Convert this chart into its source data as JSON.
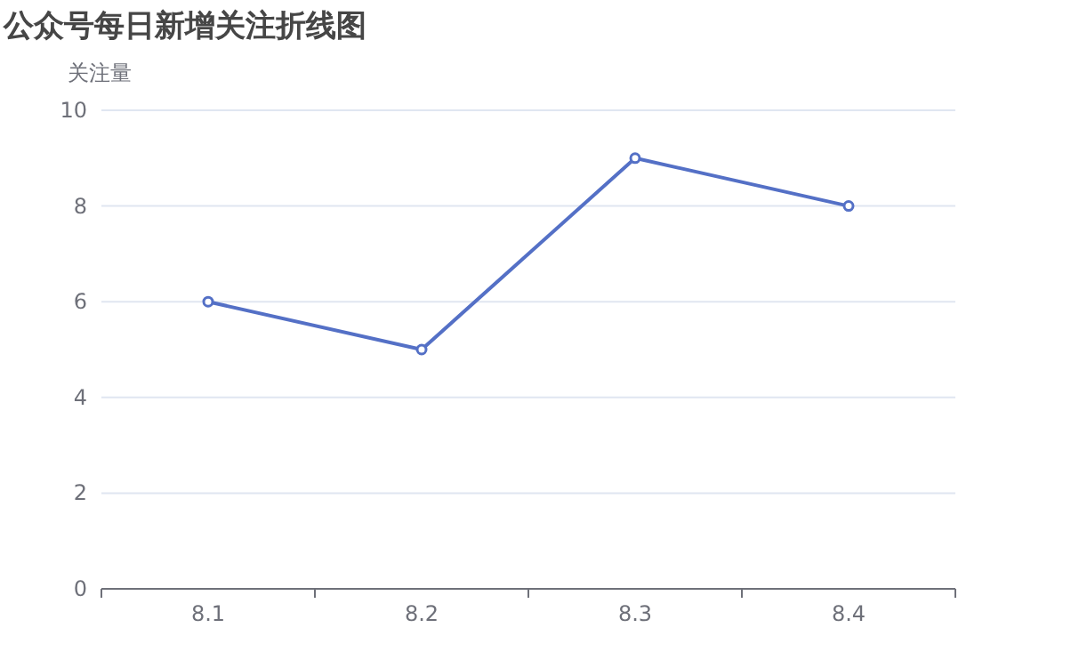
{
  "chart_data": {
    "type": "line",
    "title": "公众号每日新增关注折线图",
    "ylabel": "关注量",
    "categories": [
      "8.1",
      "8.2",
      "8.3",
      "8.4"
    ],
    "series": [
      {
        "color": "#5470c6",
        "values": [
          6,
          5,
          9,
          8
        ]
      }
    ],
    "ylim": [
      0,
      10
    ],
    "yticks": [
      0,
      2,
      4,
      6,
      8,
      10
    ],
    "grid": "y",
    "marker": "circle"
  }
}
